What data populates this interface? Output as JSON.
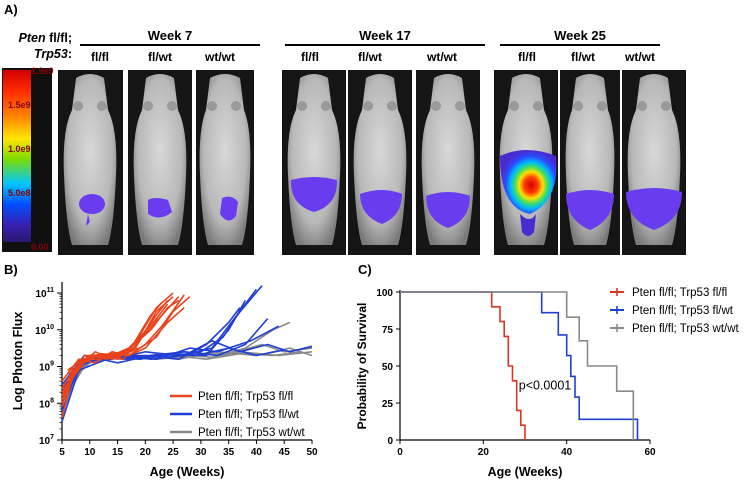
{
  "panelA": {
    "letter": "A)",
    "row_label": {
      "gene1": "Pten",
      "gene1_suffix": " fl/fl;",
      "gene2": "Trp53",
      "gene2_suffix": ":"
    },
    "colorbar": {
      "max": "1.9e9",
      "t1": "1.5e9",
      "t2": "1.0e9",
      "t3": "5.0e8",
      "min": "0.00"
    },
    "weeks": [
      {
        "label": "Week 7",
        "genotypes": [
          "fl/fl",
          "fl/wt",
          "wt/wt"
        ]
      },
      {
        "label": "Week 17",
        "genotypes": [
          "fl/fl",
          "fl/wt",
          "wt/wt"
        ]
      },
      {
        "label": "Week 25",
        "genotypes": [
          "fl/fl",
          "fl/wt",
          "wt/wt"
        ]
      }
    ]
  },
  "panelB": {
    "letter": "B)",
    "chart_data": {
      "type": "line",
      "xlabel": "Age (Weeks)",
      "ylabel": "Log Photon Flux",
      "xlim": [
        5,
        50
      ],
      "xticks": [
        "5",
        "10",
        "15",
        "20",
        "25",
        "30",
        "35",
        "40",
        "45",
        "50"
      ],
      "yscale": "log",
      "yticks": [
        "10^7",
        "10^8",
        "10^9",
        "10^10",
        "10^11"
      ],
      "ylim_exp": [
        7,
        11.3
      ],
      "series": [
        {
          "name": "Pten fl/fl; Trp53 fl/fl",
          "color": "#e8431b",
          "curves": [
            [
              [
                5,
                8.1
              ],
              [
                7,
                8.8
              ],
              [
                9,
                9.2
              ],
              [
                12,
                9.3
              ],
              [
                15,
                9.2
              ],
              [
                18,
                9.6
              ],
              [
                20,
                10.1
              ],
              [
                22,
                10.6
              ],
              [
                25,
                11.0
              ]
            ],
            [
              [
                5,
                8.4
              ],
              [
                7,
                8.9
              ],
              [
                10,
                9.25
              ],
              [
                14,
                9.3
              ],
              [
                17,
                9.5
              ],
              [
                20,
                9.9
              ],
              [
                23,
                10.4
              ],
              [
                26,
                10.9
              ]
            ],
            [
              [
                5,
                7.9
              ],
              [
                7,
                9.0
              ],
              [
                10,
                9.3
              ],
              [
                13,
                9.2
              ],
              [
                16,
                9.35
              ],
              [
                19,
                9.8
              ],
              [
                22,
                10.3
              ],
              [
                24,
                10.7
              ]
            ],
            [
              [
                5,
                8.6
              ],
              [
                8,
                9.2
              ],
              [
                11,
                9.1
              ],
              [
                14,
                9.4
              ],
              [
                17,
                9.3
              ],
              [
                20,
                9.6
              ],
              [
                23,
                10.1
              ],
              [
                27,
                10.95
              ]
            ],
            [
              [
                5,
                8.2
              ],
              [
                8,
                9.15
              ],
              [
                11,
                9.3
              ],
              [
                15,
                9.25
              ],
              [
                18,
                9.45
              ],
              [
                21,
                10.2
              ],
              [
                24,
                10.8
              ]
            ],
            [
              [
                5,
                8.0
              ],
              [
                7,
                8.7
              ],
              [
                9,
                9.3
              ],
              [
                13,
                9.3
              ],
              [
                16,
                9.2
              ],
              [
                19,
                9.7
              ],
              [
                22,
                10.5
              ],
              [
                25,
                10.9
              ]
            ],
            [
              [
                6,
                8.5
              ],
              [
                9,
                9.1
              ],
              [
                12,
                9.35
              ],
              [
                15,
                9.3
              ],
              [
                18,
                9.6
              ],
              [
                21,
                10.0
              ],
              [
                24,
                10.6
              ],
              [
                26,
                10.8
              ]
            ],
            [
              [
                5,
                8.3
              ],
              [
                8,
                9.0
              ],
              [
                11,
                9.4
              ],
              [
                14,
                9.2
              ],
              [
                17,
                9.4
              ],
              [
                19,
                9.9
              ],
              [
                21,
                10.4
              ],
              [
                23,
                10.75
              ]
            ],
            [
              [
                5,
                7.6
              ],
              [
                7,
                8.8
              ],
              [
                10,
                9.3
              ],
              [
                14,
                9.35
              ],
              [
                17,
                9.3
              ],
              [
                20,
                9.5
              ],
              [
                24,
                10.2
              ],
              [
                27,
                10.6
              ]
            ],
            [
              [
                6,
                8.9
              ],
              [
                9,
                9.2
              ],
              [
                12,
                9.2
              ],
              [
                16,
                9.4
              ],
              [
                19,
                9.5
              ],
              [
                22,
                9.8
              ],
              [
                25,
                10.5
              ],
              [
                28,
                10.9
              ]
            ]
          ]
        },
        {
          "name": "Pten fl/fl; Trp53 fl/wt",
          "color": "#1f3fd6",
          "curves": [
            [
              [
                5,
                8.0
              ],
              [
                8,
                9.1
              ],
              [
                12,
                9.2
              ],
              [
                18,
                9.3
              ],
              [
                24,
                9.25
              ],
              [
                30,
                9.4
              ],
              [
                34,
                9.8
              ],
              [
                37,
                10.5
              ],
              [
                40,
                11.1
              ]
            ],
            [
              [
                5,
                7.8
              ],
              [
                8,
                9.0
              ],
              [
                13,
                9.3
              ],
              [
                19,
                9.2
              ],
              [
                25,
                9.35
              ],
              [
                31,
                9.3
              ],
              [
                35,
                10.0
              ],
              [
                38,
                10.8
              ]
            ],
            [
              [
                5,
                8.3
              ],
              [
                9,
                9.2
              ],
              [
                14,
                9.2
              ],
              [
                20,
                9.4
              ],
              [
                26,
                9.3
              ],
              [
                32,
                9.5
              ],
              [
                36,
                10.3
              ],
              [
                41,
                11.2
              ]
            ],
            [
              [
                5,
                8.5
              ],
              [
                9,
                9.3
              ],
              [
                15,
                9.1
              ],
              [
                21,
                9.3
              ],
              [
                27,
                9.4
              ],
              [
                33,
                9.3
              ],
              [
                38,
                9.6
              ],
              [
                42,
                10.3
              ]
            ],
            [
              [
                5,
                7.5
              ],
              [
                8,
                8.9
              ],
              [
                14,
                9.25
              ],
              [
                20,
                9.3
              ],
              [
                26,
                9.2
              ],
              [
                31,
                9.6
              ],
              [
                35,
                10.2
              ],
              [
                37,
                10.6
              ]
            ],
            [
              [
                6,
                8.7
              ],
              [
                10,
                9.2
              ],
              [
                16,
                9.3
              ],
              [
                22,
                9.2
              ],
              [
                28,
                9.5
              ],
              [
                33,
                9.4
              ],
              [
                39,
                9.7
              ],
              [
                44,
                10.1
              ]
            ],
            [
              [
                5,
                8.1
              ],
              [
                9,
                9.1
              ],
              [
                15,
                9.3
              ],
              [
                21,
                9.2
              ],
              [
                27,
                9.3
              ],
              [
                32,
                9.7
              ],
              [
                37,
                9.4
              ],
              [
                42,
                9.6
              ],
              [
                46,
                9.4
              ],
              [
                50,
                9.55
              ]
            ],
            [
              [
                5,
                8.4
              ],
              [
                10,
                9.25
              ],
              [
                17,
                9.2
              ],
              [
                23,
                9.35
              ],
              [
                29,
                9.3
              ],
              [
                35,
                9.5
              ],
              [
                40,
                9.3
              ],
              [
                45,
                9.45
              ]
            ]
          ]
        },
        {
          "name": "Pten fl/fl; Trp53 wt/wt",
          "color": "#888888",
          "curves": [
            [
              [
                5,
                8.2
              ],
              [
                9,
                9.2
              ],
              [
                15,
                9.3
              ],
              [
                22,
                9.2
              ],
              [
                30,
                9.3
              ],
              [
                37,
                9.4
              ],
              [
                44,
                9.3
              ],
              [
                50,
                9.4
              ]
            ],
            [
              [
                5,
                7.7
              ],
              [
                9,
                9.3
              ],
              [
                16,
                9.2
              ],
              [
                24,
                9.35
              ],
              [
                32,
                9.25
              ],
              [
                38,
                9.5
              ],
              [
                43,
                10.0
              ],
              [
                46,
                10.2
              ]
            ],
            [
              [
                6,
                8.8
              ],
              [
                11,
                9.2
              ],
              [
                18,
                9.3
              ],
              [
                26,
                9.2
              ],
              [
                33,
                9.4
              ],
              [
                40,
                9.3
              ],
              [
                46,
                9.5
              ],
              [
                50,
                9.3
              ]
            ],
            [
              [
                5,
                8.4
              ],
              [
                10,
                9.1
              ],
              [
                17,
                9.3
              ],
              [
                25,
                9.3
              ],
              [
                31,
                9.2
              ],
              [
                37,
                9.35
              ],
              [
                43,
                9.3
              ],
              [
                48,
                9.4
              ]
            ],
            [
              [
                5,
                8.0
              ],
              [
                10,
                9.25
              ],
              [
                19,
                9.2
              ],
              [
                27,
                9.4
              ],
              [
                34,
                9.3
              ],
              [
                41,
                9.6
              ],
              [
                45,
                9.4
              ],
              [
                50,
                9.5
              ]
            ]
          ]
        }
      ],
      "legend": "bottom-right"
    }
  },
  "panelC": {
    "letter": "C)",
    "chart_data": {
      "type": "line",
      "xlabel": "Age (Weeks)",
      "ylabel": "Probability of Survival",
      "xlim": [
        0,
        60
      ],
      "ylim": [
        0,
        100
      ],
      "xticks": [
        "0",
        "20",
        "40",
        "60"
      ],
      "yticks": [
        "0",
        "25",
        "50",
        "75",
        "100"
      ],
      "annotation": "p<0.0001",
      "series": [
        {
          "name": "Pten fl/fl; Trp53 fl/fl",
          "color": "#d9381e",
          "steps": [
            [
              0,
              100
            ],
            [
              22,
              100
            ],
            [
              22,
              90
            ],
            [
              24,
              90
            ],
            [
              24,
              80
            ],
            [
              25,
              80
            ],
            [
              25,
              70
            ],
            [
              26,
              70
            ],
            [
              26,
              50
            ],
            [
              27,
              50
            ],
            [
              27,
              40
            ],
            [
              28,
              40
            ],
            [
              28,
              20
            ],
            [
              29,
              20
            ],
            [
              29,
              10
            ],
            [
              30,
              10
            ],
            [
              30,
              0
            ]
          ]
        },
        {
          "name": "Pten fl/fl; Trp53 fl/wt",
          "color": "#1f3fd6",
          "steps": [
            [
              0,
              100
            ],
            [
              34,
              100
            ],
            [
              34,
              86
            ],
            [
              38,
              86
            ],
            [
              38,
              71
            ],
            [
              40,
              71
            ],
            [
              40,
              57
            ],
            [
              41,
              57
            ],
            [
              41,
              43
            ],
            [
              42,
              43
            ],
            [
              42,
              29
            ],
            [
              43,
              29
            ],
            [
              43,
              14
            ],
            [
              57,
              14
            ],
            [
              57,
              0
            ]
          ]
        },
        {
          "name": "Pten fl/fl; Trp53 wt/wt",
          "color": "#8a8a8a",
          "steps": [
            [
              0,
              100
            ],
            [
              40,
              100
            ],
            [
              40,
              83
            ],
            [
              43,
              83
            ],
            [
              43,
              67
            ],
            [
              45,
              67
            ],
            [
              45,
              50
            ],
            [
              52,
              50
            ],
            [
              52,
              33
            ],
            [
              56,
              33
            ],
            [
              56,
              0
            ]
          ]
        }
      ],
      "legend": "top-right"
    }
  }
}
